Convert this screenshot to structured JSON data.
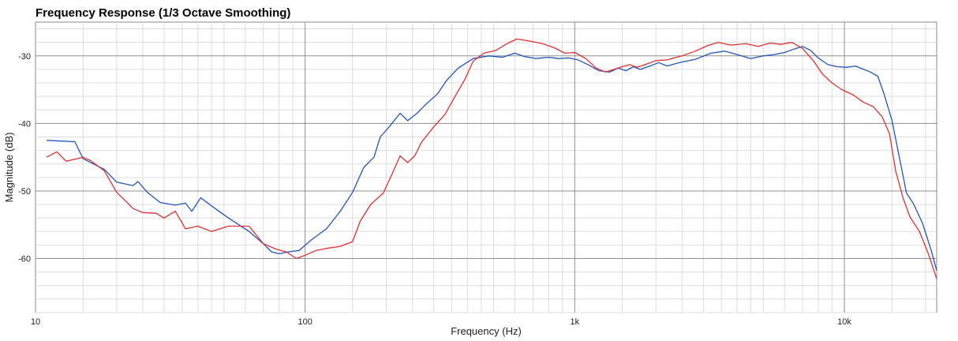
{
  "chart_data": {
    "type": "line",
    "title": "Frequency Response (1/3 Octave Smoothing)",
    "xlabel": "Frequency (Hz)",
    "ylabel": "Magnitude (dB)",
    "x_scale": "log",
    "xlim": [
      10,
      22000
    ],
    "ylim": [
      -68,
      -25
    ],
    "x_ticks": [
      {
        "value": 10,
        "label": "10"
      },
      {
        "value": 100,
        "label": "100"
      },
      {
        "value": 1000,
        "label": "1k"
      },
      {
        "value": 10000,
        "label": "10k"
      }
    ],
    "y_ticks": [
      {
        "value": -30,
        "label": "-30"
      },
      {
        "value": -40,
        "label": "-40"
      },
      {
        "value": -50,
        "label": "-50"
      },
      {
        "value": -60,
        "label": "-60"
      }
    ],
    "grid": true,
    "series": [
      {
        "color": "#2255bb",
        "points": [
          [
            11,
            -42.5
          ],
          [
            14,
            -42.7
          ],
          [
            15,
            -45.2
          ],
          [
            18,
            -46.8
          ],
          [
            20,
            -48.7
          ],
          [
            23,
            -49.2
          ],
          [
            24,
            -48.6
          ],
          [
            26,
            -50.2
          ],
          [
            29,
            -51.7
          ],
          [
            33,
            -52.1
          ],
          [
            36,
            -51.8
          ],
          [
            38,
            -53.0
          ],
          [
            41,
            -51.0
          ],
          [
            46,
            -52.5
          ],
          [
            52,
            -54.0
          ],
          [
            62,
            -56.0
          ],
          [
            70,
            -57.8
          ],
          [
            75,
            -59.0
          ],
          [
            80,
            -59.3
          ],
          [
            87,
            -59.0
          ],
          [
            95,
            -58.8
          ],
          [
            105,
            -57.3
          ],
          [
            120,
            -55.6
          ],
          [
            135,
            -53.0
          ],
          [
            150,
            -50.2
          ],
          [
            165,
            -46.5
          ],
          [
            180,
            -45.0
          ],
          [
            190,
            -42.0
          ],
          [
            205,
            -40.5
          ],
          [
            225,
            -38.5
          ],
          [
            240,
            -39.6
          ],
          [
            260,
            -38.5
          ],
          [
            280,
            -37.2
          ],
          [
            310,
            -35.6
          ],
          [
            335,
            -33.6
          ],
          [
            370,
            -31.8
          ],
          [
            420,
            -30.4
          ],
          [
            480,
            -30.0
          ],
          [
            540,
            -30.2
          ],
          [
            600,
            -29.6
          ],
          [
            650,
            -30.1
          ],
          [
            720,
            -30.4
          ],
          [
            800,
            -30.2
          ],
          [
            870,
            -30.4
          ],
          [
            950,
            -30.3
          ],
          [
            1030,
            -30.6
          ],
          [
            1120,
            -31.3
          ],
          [
            1230,
            -32.2
          ],
          [
            1350,
            -32.4
          ],
          [
            1450,
            -31.8
          ],
          [
            1550,
            -32.2
          ],
          [
            1650,
            -31.6
          ],
          [
            1750,
            -32.0
          ],
          [
            1900,
            -31.5
          ],
          [
            2050,
            -31.0
          ],
          [
            2200,
            -31.5
          ],
          [
            2450,
            -31.0
          ],
          [
            2800,
            -30.5
          ],
          [
            3200,
            -29.6
          ],
          [
            3600,
            -29.3
          ],
          [
            4000,
            -29.8
          ],
          [
            4500,
            -30.4
          ],
          [
            5000,
            -30.0
          ],
          [
            5500,
            -29.8
          ],
          [
            6000,
            -29.5
          ],
          [
            6500,
            -29.0
          ],
          [
            7000,
            -28.6
          ],
          [
            7500,
            -29.2
          ],
          [
            8000,
            -30.3
          ],
          [
            8700,
            -31.3
          ],
          [
            9400,
            -31.6
          ],
          [
            10200,
            -31.7
          ],
          [
            11000,
            -31.5
          ],
          [
            11800,
            -32.0
          ],
          [
            12500,
            -32.4
          ],
          [
            13300,
            -33.0
          ],
          [
            14000,
            -35.5
          ],
          [
            15000,
            -39.5
          ],
          [
            16000,
            -45.0
          ],
          [
            17000,
            -50.3
          ],
          [
            18000,
            -51.8
          ],
          [
            19500,
            -54.8
          ],
          [
            21000,
            -58.8
          ],
          [
            22000,
            -61.8
          ]
        ]
      },
      {
        "color": "#e03030",
        "points": [
          [
            11,
            -45.0
          ],
          [
            12,
            -44.2
          ],
          [
            13,
            -45.6
          ],
          [
            15,
            -45.0
          ],
          [
            16,
            -45.5
          ],
          [
            18,
            -47.0
          ],
          [
            20,
            -50.2
          ],
          [
            22,
            -51.8
          ],
          [
            23,
            -52.6
          ],
          [
            25,
            -53.2
          ],
          [
            28,
            -53.3
          ],
          [
            30,
            -54.0
          ],
          [
            33,
            -53.0
          ],
          [
            36,
            -55.6
          ],
          [
            40,
            -55.2
          ],
          [
            45,
            -56.0
          ],
          [
            52,
            -55.2
          ],
          [
            62,
            -55.2
          ],
          [
            70,
            -57.8
          ],
          [
            78,
            -58.6
          ],
          [
            85,
            -59.0
          ],
          [
            93,
            -60.0
          ],
          [
            100,
            -59.5
          ],
          [
            110,
            -58.8
          ],
          [
            120,
            -58.5
          ],
          [
            135,
            -58.2
          ],
          [
            150,
            -57.5
          ],
          [
            160,
            -54.5
          ],
          [
            175,
            -52.0
          ],
          [
            195,
            -50.3
          ],
          [
            210,
            -47.5
          ],
          [
            225,
            -44.8
          ],
          [
            240,
            -45.8
          ],
          [
            255,
            -44.8
          ],
          [
            270,
            -42.8
          ],
          [
            300,
            -40.5
          ],
          [
            330,
            -38.7
          ],
          [
            360,
            -36.0
          ],
          [
            390,
            -33.6
          ],
          [
            420,
            -30.8
          ],
          [
            460,
            -29.6
          ],
          [
            510,
            -29.2
          ],
          [
            560,
            -28.2
          ],
          [
            610,
            -27.5
          ],
          [
            680,
            -27.8
          ],
          [
            760,
            -28.2
          ],
          [
            840,
            -28.8
          ],
          [
            920,
            -29.6
          ],
          [
            1000,
            -29.5
          ],
          [
            1100,
            -30.4
          ],
          [
            1200,
            -31.8
          ],
          [
            1300,
            -32.4
          ],
          [
            1400,
            -32.0
          ],
          [
            1500,
            -31.6
          ],
          [
            1600,
            -31.3
          ],
          [
            1700,
            -31.7
          ],
          [
            1850,
            -31.2
          ],
          [
            2000,
            -30.7
          ],
          [
            2200,
            -30.6
          ],
          [
            2500,
            -30.0
          ],
          [
            2800,
            -29.3
          ],
          [
            3100,
            -28.5
          ],
          [
            3400,
            -28.0
          ],
          [
            3800,
            -28.4
          ],
          [
            4300,
            -28.2
          ],
          [
            4800,
            -28.6
          ],
          [
            5300,
            -28.1
          ],
          [
            5800,
            -28.3
          ],
          [
            6400,
            -28.0
          ],
          [
            7000,
            -28.9
          ],
          [
            7700,
            -30.8
          ],
          [
            8300,
            -32.7
          ],
          [
            9000,
            -34.0
          ],
          [
            9800,
            -35.0
          ],
          [
            10800,
            -35.8
          ],
          [
            11800,
            -36.9
          ],
          [
            12800,
            -37.5
          ],
          [
            13800,
            -39.0
          ],
          [
            14700,
            -41.5
          ],
          [
            15500,
            -47.0
          ],
          [
            16500,
            -51.0
          ],
          [
            17500,
            -53.8
          ],
          [
            19000,
            -56.0
          ],
          [
            20500,
            -59.3
          ],
          [
            22000,
            -63.0
          ]
        ]
      }
    ]
  }
}
